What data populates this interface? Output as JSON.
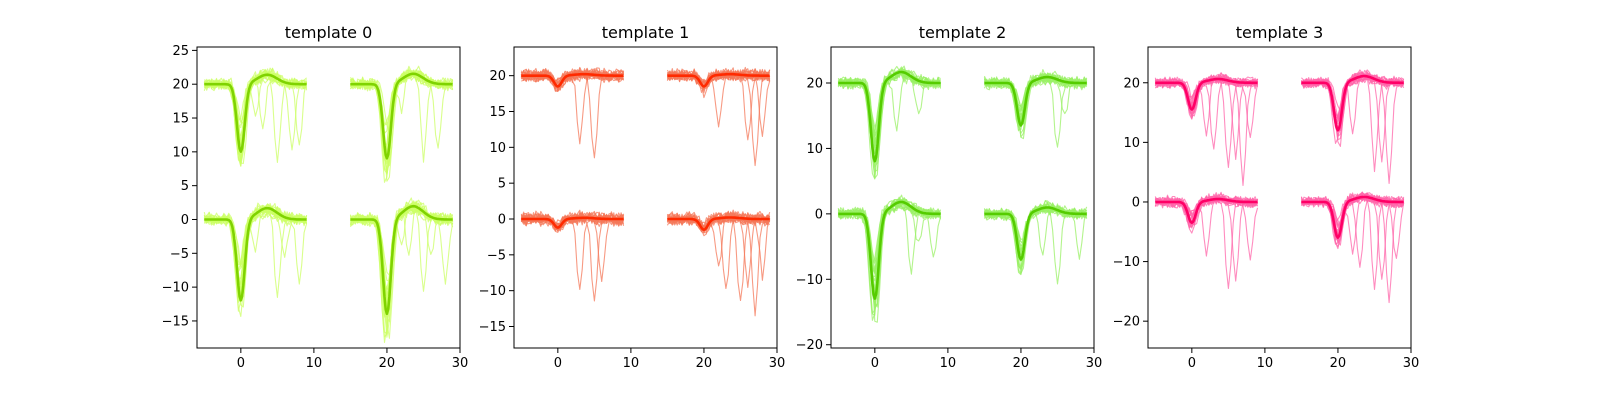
{
  "chart_data": [
    {
      "type": "line",
      "title": "template 0",
      "xlim": [
        -6,
        30
      ],
      "ylim": [
        -19,
        25.5
      ],
      "xticks": [
        0,
        10,
        20,
        30
      ],
      "yticks": [
        -15,
        -10,
        -5,
        0,
        5,
        10,
        15,
        20,
        25
      ],
      "trace_color": "#ccff66",
      "mean_color": "#7fd300",
      "channels": [
        {
          "x_start": -5,
          "offset": 20,
          "trough": -10
        },
        {
          "x_start": 15,
          "offset": 20,
          "trough": -11
        },
        {
          "x_start": -5,
          "offset": 0,
          "trough": -12
        },
        {
          "x_start": 15,
          "offset": 0,
          "trough": -14
        }
      ],
      "secondary_spikes": [
        [
          5,
          -12
        ],
        [
          7,
          -10
        ],
        [
          3,
          -8
        ],
        [
          8,
          -9
        ],
        [
          6,
          -6
        ],
        [
          2,
          -5
        ]
      ]
    },
    {
      "type": "line",
      "title": "template 1",
      "xlim": [
        -6,
        30
      ],
      "ylim": [
        -18,
        24
      ],
      "xticks": [
        0,
        10,
        20,
        30
      ],
      "yticks": [
        -15,
        -10,
        -5,
        0,
        5,
        10,
        15,
        20
      ],
      "trace_color": "#f4785a",
      "mean_color": "#ff2a00",
      "channels": [
        {
          "x_start": -5,
          "offset": 20,
          "trough": -1.5
        },
        {
          "x_start": 15,
          "offset": 20,
          "trough": -1.5
        },
        {
          "x_start": -5,
          "offset": 0,
          "trough": -1.2
        },
        {
          "x_start": 15,
          "offset": 0,
          "trough": -1.5
        }
      ],
      "secondary_spikes": [
        [
          5,
          -12
        ],
        [
          7,
          -13
        ],
        [
          3,
          -10
        ],
        [
          8,
          -8
        ],
        [
          6,
          -9
        ],
        [
          2,
          -7
        ]
      ]
    },
    {
      "type": "line",
      "title": "template 2",
      "xlim": [
        -6,
        30
      ],
      "ylim": [
        -20.5,
        25.5
      ],
      "xticks": [
        0,
        10,
        20,
        30
      ],
      "yticks": [
        -20,
        -10,
        0,
        10,
        20
      ],
      "trace_color": "#99f066",
      "mean_color": "#55cc00",
      "channels": [
        {
          "x_start": -5,
          "offset": 20,
          "trough": -12
        },
        {
          "x_start": 15,
          "offset": 20,
          "trough": -6.5
        },
        {
          "x_start": -5,
          "offset": 0,
          "trough": -13
        },
        {
          "x_start": 15,
          "offset": 0,
          "trough": -7
        }
      ],
      "secondary_spikes": [
        [
          5,
          -11
        ],
        [
          7,
          -9
        ],
        [
          3,
          -8
        ],
        [
          8,
          -7
        ],
        [
          6,
          -5
        ]
      ]
    },
    {
      "type": "line",
      "title": "template 3",
      "xlim": [
        -6,
        30
      ],
      "ylim": [
        -24.5,
        26
      ],
      "xticks": [
        0,
        10,
        20,
        30
      ],
      "yticks": [
        -20,
        -10,
        0,
        10,
        20
      ],
      "trace_color": "#ff66aa",
      "mean_color": "#ff0066",
      "channels": [
        {
          "x_start": -5,
          "offset": 20,
          "trough": -4.5
        },
        {
          "x_start": 15,
          "offset": 20,
          "trough": -8
        },
        {
          "x_start": -5,
          "offset": 0,
          "trough": -3.5
        },
        {
          "x_start": 15,
          "offset": 0,
          "trough": -6
        }
      ],
      "secondary_spikes": [
        [
          5,
          -15
        ],
        [
          7,
          -17
        ],
        [
          3,
          -12
        ],
        [
          8,
          -10
        ],
        [
          6,
          -13
        ],
        [
          2,
          -9
        ]
      ]
    }
  ]
}
